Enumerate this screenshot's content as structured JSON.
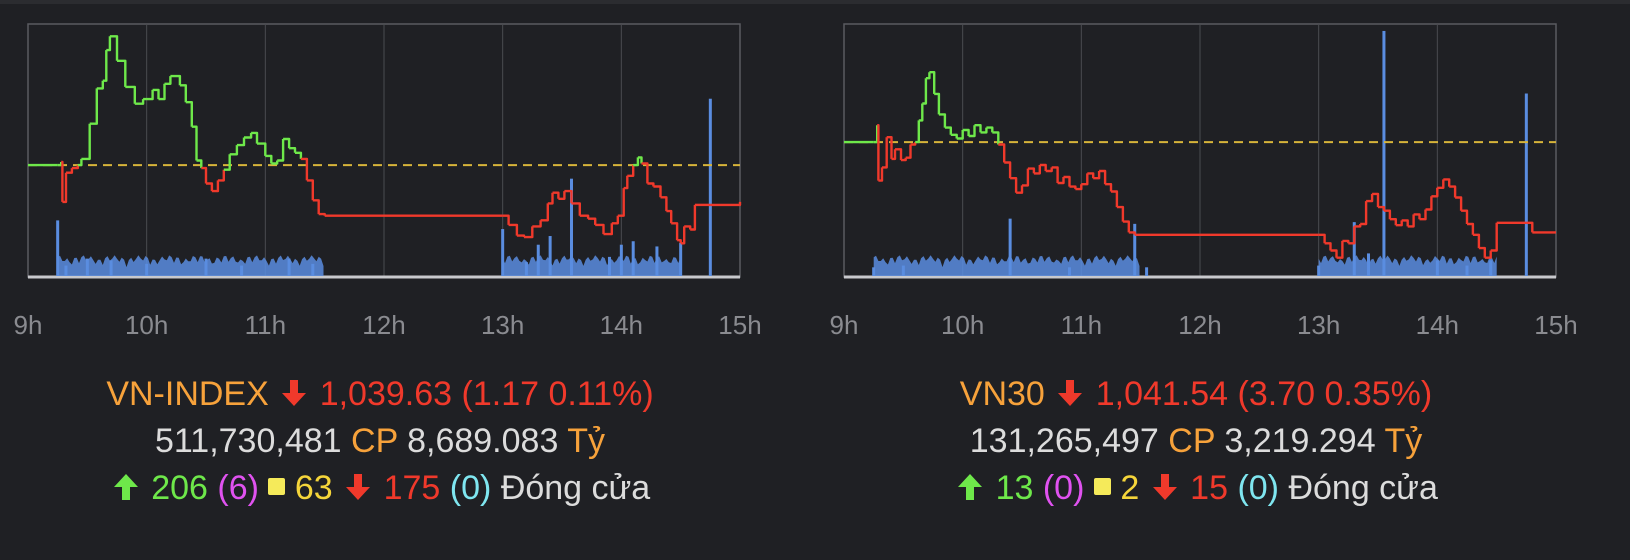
{
  "colors": {
    "up": "#6ee84a",
    "down": "#f0392b",
    "reference": "#d7b43a",
    "volume": "#5a8de0",
    "frame": "#5a5b60",
    "grid": "#4a4b50",
    "axis_text": "#8a8b90"
  },
  "chart_data": [
    {
      "type": "line",
      "name": "VN-INDEX intraday",
      "x_tick_labels": [
        "9h",
        "10h",
        "11h",
        "12h",
        "13h",
        "14h",
        "15h"
      ],
      "xlim": [
        9,
        15
      ],
      "reference": 1040.8,
      "ylim": [
        1033.5,
        1050
      ],
      "price_points": [
        [
          9.0,
          1040.8
        ],
        [
          9.25,
          1040.8
        ],
        [
          9.28,
          1041.0
        ],
        [
          9.29,
          1038.4
        ],
        [
          9.32,
          1040.3
        ],
        [
          9.37,
          1040.6
        ],
        [
          9.42,
          1040.8
        ],
        [
          9.45,
          1041.2
        ],
        [
          9.52,
          1043.5
        ],
        [
          9.58,
          1045.8
        ],
        [
          9.63,
          1046.3
        ],
        [
          9.66,
          1048.3
        ],
        [
          9.69,
          1049.2
        ],
        [
          9.75,
          1047.6
        ],
        [
          9.82,
          1045.9
        ],
        [
          9.9,
          1044.8
        ],
        [
          9.97,
          1045.1
        ],
        [
          10.05,
          1045.7
        ],
        [
          10.1,
          1045.1
        ],
        [
          10.15,
          1046.1
        ],
        [
          10.2,
          1046.6
        ],
        [
          10.28,
          1046.0
        ],
        [
          10.33,
          1044.9
        ],
        [
          10.38,
          1043.3
        ],
        [
          10.42,
          1041.1
        ],
        [
          10.46,
          1040.6
        ],
        [
          10.5,
          1039.6
        ],
        [
          10.55,
          1039.1
        ],
        [
          10.6,
          1039.8
        ],
        [
          10.65,
          1040.5
        ],
        [
          10.7,
          1041.5
        ],
        [
          10.76,
          1042.1
        ],
        [
          10.82,
          1042.6
        ],
        [
          10.88,
          1042.9
        ],
        [
          10.93,
          1042.2
        ],
        [
          11.0,
          1041.4
        ],
        [
          11.05,
          1040.9
        ],
        [
          11.1,
          1041.1
        ],
        [
          11.15,
          1042.5
        ],
        [
          11.2,
          1041.9
        ],
        [
          11.25,
          1041.6
        ],
        [
          11.3,
          1041.2
        ],
        [
          11.35,
          1039.8
        ],
        [
          11.4,
          1038.5
        ],
        [
          11.45,
          1037.6
        ],
        [
          11.5,
          1037.5
        ],
        [
          13.0,
          1037.5
        ],
        [
          13.05,
          1036.9
        ],
        [
          13.12,
          1036.2
        ],
        [
          13.18,
          1036.1
        ],
        [
          13.25,
          1036.8
        ],
        [
          13.32,
          1037.2
        ],
        [
          13.38,
          1038.3
        ],
        [
          13.42,
          1039.0
        ],
        [
          13.47,
          1038.6
        ],
        [
          13.52,
          1039.1
        ],
        [
          13.58,
          1038.3
        ],
        [
          13.65,
          1037.5
        ],
        [
          13.72,
          1037.3
        ],
        [
          13.78,
          1036.9
        ],
        [
          13.85,
          1036.3
        ],
        [
          13.92,
          1037.0
        ],
        [
          13.97,
          1037.5
        ],
        [
          14.02,
          1039.3
        ],
        [
          14.05,
          1040.1
        ],
        [
          14.1,
          1040.8
        ],
        [
          14.14,
          1041.3
        ],
        [
          14.17,
          1040.9
        ],
        [
          14.22,
          1039.6
        ],
        [
          14.27,
          1039.4
        ],
        [
          14.33,
          1038.7
        ],
        [
          14.38,
          1037.8
        ],
        [
          14.42,
          1037.0
        ],
        [
          14.47,
          1035.9
        ],
        [
          14.5,
          1035.7
        ],
        [
          14.53,
          1036.8
        ],
        [
          14.58,
          1036.6
        ],
        [
          14.62,
          1038.2
        ],
        [
          14.75,
          1038.2
        ],
        [
          15.0,
          1038.4
        ]
      ],
      "volume_spikes": [
        [
          9.25,
          3.2
        ],
        [
          9.32,
          0.6
        ],
        [
          9.5,
          1.0
        ],
        [
          9.7,
          0.9
        ],
        [
          10.0,
          0.7
        ],
        [
          10.5,
          1.0
        ],
        [
          10.8,
          0.6
        ],
        [
          11.2,
          1.0
        ],
        [
          11.4,
          0.7
        ],
        [
          13.0,
          2.7
        ],
        [
          13.2,
          0.8
        ],
        [
          13.3,
          1.8
        ],
        [
          13.4,
          2.3
        ],
        [
          13.58,
          5.6
        ],
        [
          13.9,
          1.1
        ],
        [
          14.0,
          1.8
        ],
        [
          14.1,
          2.0
        ],
        [
          14.3,
          1.7
        ],
        [
          14.5,
          1.9
        ],
        [
          14.75,
          10.2
        ]
      ]
    },
    {
      "type": "line",
      "name": "VN30 intraday",
      "x_tick_labels": [
        "9h",
        "10h",
        "11h",
        "12h",
        "13h",
        "14h",
        "15h"
      ],
      "xlim": [
        9,
        15
      ],
      "reference": 1045.2,
      "ylim": [
        1034,
        1055
      ],
      "price_points": [
        [
          9.0,
          1045.2
        ],
        [
          9.25,
          1045.2
        ],
        [
          9.28,
          1046.6
        ],
        [
          9.29,
          1042.0
        ],
        [
          9.32,
          1043.1
        ],
        [
          9.36,
          1045.6
        ],
        [
          9.4,
          1043.8
        ],
        [
          9.43,
          1044.6
        ],
        [
          9.48,
          1043.7
        ],
        [
          9.52,
          1043.9
        ],
        [
          9.56,
          1045.0
        ],
        [
          9.6,
          1045.2
        ],
        [
          9.63,
          1047.0
        ],
        [
          9.66,
          1048.4
        ],
        [
          9.69,
          1050.5
        ],
        [
          9.72,
          1051.0
        ],
        [
          9.76,
          1049.2
        ],
        [
          9.8,
          1047.5
        ],
        [
          9.85,
          1046.4
        ],
        [
          9.9,
          1045.8
        ],
        [
          9.95,
          1045.5
        ],
        [
          10.0,
          1046.2
        ],
        [
          10.05,
          1045.7
        ],
        [
          10.1,
          1046.6
        ],
        [
          10.15,
          1046.0
        ],
        [
          10.2,
          1046.4
        ],
        [
          10.25,
          1046.0
        ],
        [
          10.3,
          1045.0
        ],
        [
          10.35,
          1043.5
        ],
        [
          10.4,
          1042.2
        ],
        [
          10.45,
          1041.0
        ],
        [
          10.5,
          1041.6
        ],
        [
          10.55,
          1043.0
        ],
        [
          10.6,
          1042.6
        ],
        [
          10.65,
          1043.3
        ],
        [
          10.7,
          1042.8
        ],
        [
          10.75,
          1043.1
        ],
        [
          10.8,
          1041.8
        ],
        [
          10.85,
          1042.3
        ],
        [
          10.9,
          1041.5
        ],
        [
          10.95,
          1041.3
        ],
        [
          11.0,
          1041.7
        ],
        [
          11.05,
          1042.6
        ],
        [
          11.1,
          1042.2
        ],
        [
          11.15,
          1042.8
        ],
        [
          11.2,
          1041.7
        ],
        [
          11.25,
          1041.1
        ],
        [
          11.3,
          1039.8
        ],
        [
          11.35,
          1038.6
        ],
        [
          11.4,
          1037.7
        ],
        [
          11.45,
          1037.5
        ],
        [
          13.0,
          1037.5
        ],
        [
          13.05,
          1036.8
        ],
        [
          13.1,
          1036.2
        ],
        [
          13.15,
          1035.6
        ],
        [
          13.2,
          1037.0
        ],
        [
          13.25,
          1036.8
        ],
        [
          13.3,
          1038.2
        ],
        [
          13.35,
          1038.4
        ],
        [
          13.4,
          1040.3
        ],
        [
          13.45,
          1040.9
        ],
        [
          13.5,
          1039.8
        ],
        [
          13.55,
          1039.5
        ],
        [
          13.6,
          1038.8
        ],
        [
          13.65,
          1038.3
        ],
        [
          13.7,
          1038.7
        ],
        [
          13.75,
          1038.2
        ],
        [
          13.8,
          1039.2
        ],
        [
          13.85,
          1038.8
        ],
        [
          13.9,
          1039.6
        ],
        [
          13.95,
          1040.7
        ],
        [
          14.0,
          1041.4
        ],
        [
          14.05,
          1042.1
        ],
        [
          14.1,
          1041.5
        ],
        [
          14.15,
          1040.6
        ],
        [
          14.2,
          1039.5
        ],
        [
          14.25,
          1038.4
        ],
        [
          14.3,
          1037.5
        ],
        [
          14.35,
          1036.4
        ],
        [
          14.4,
          1035.6
        ],
        [
          14.45,
          1036.2
        ],
        [
          14.5,
          1038.5
        ],
        [
          14.75,
          1038.5
        ],
        [
          14.8,
          1037.7
        ],
        [
          15.0,
          1037.7
        ]
      ],
      "volume_spikes": [
        [
          9.25,
          0.5
        ],
        [
          9.5,
          0.6
        ],
        [
          10.4,
          3.3
        ],
        [
          10.9,
          0.5
        ],
        [
          11.45,
          3.0
        ],
        [
          11.55,
          0.5
        ],
        [
          13.0,
          0.6
        ],
        [
          13.3,
          3.1
        ],
        [
          13.42,
          1.3
        ],
        [
          13.55,
          14.1
        ],
        [
          14.0,
          0.9
        ],
        [
          14.25,
          0.6
        ],
        [
          14.45,
          0.9
        ],
        [
          14.75,
          10.5
        ]
      ]
    }
  ],
  "left": {
    "index_name": "VN-INDEX",
    "value": "1,039.63",
    "change": "(1.17 0.11%)",
    "volume": "511,730,481",
    "volume_unit": "CP",
    "turnover": "8,689.083",
    "turnover_unit": "Tỷ",
    "advancers": "206",
    "ceiling": "(6)",
    "unchanged": "63",
    "decliners": "175",
    "floor": "(0)",
    "status": "Đóng cửa"
  },
  "right": {
    "index_name": "VN30",
    "value": "1,041.54",
    "change": "(3.70 0.35%)",
    "volume": "131,265,497",
    "volume_unit": "CP",
    "turnover": "3,219.294",
    "turnover_unit": "Tỷ",
    "advancers": "13",
    "ceiling": "(0)",
    "unchanged": "2",
    "decliners": "15",
    "floor": "(0)",
    "status": "Đóng cửa"
  }
}
